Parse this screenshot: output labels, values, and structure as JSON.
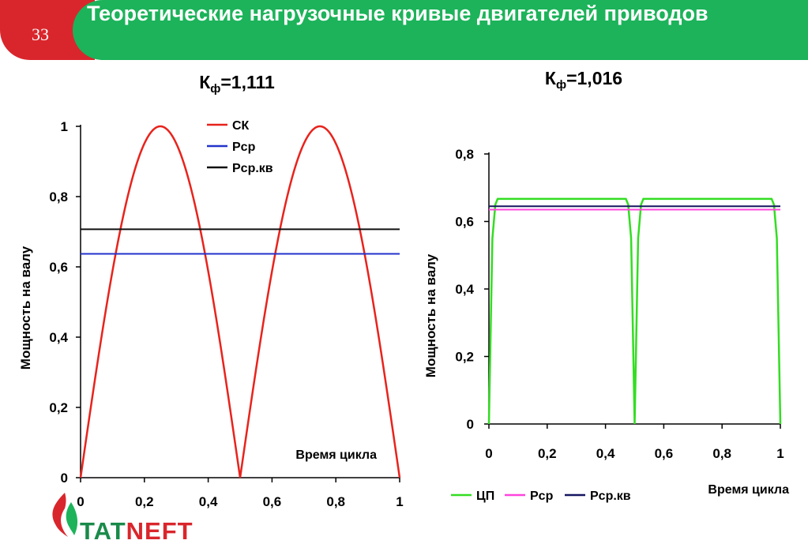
{
  "slide": {
    "number": "33",
    "title": "Теоретические нагрузочные кривые двигателей приводов"
  },
  "logo": {
    "part1": "TAT",
    "part2": "NEFT"
  },
  "colors": {
    "red": "#d9262c",
    "green": "#1cb35a",
    "logo_green": "#1a8a4a"
  },
  "chart_data": [
    {
      "type": "line",
      "title_main": "К",
      "title_sub": "ф",
      "title_value": "=1,111",
      "xlabel": "Время цикла",
      "ylabel": "Мощность на валу",
      "xlim": [
        0,
        1
      ],
      "ylim": [
        0,
        1
      ],
      "x_ticks": [
        "0",
        "0,2",
        "0,4",
        "0,6",
        "0,8",
        "1"
      ],
      "x_tick_values": [
        0,
        0.2,
        0.4,
        0.6,
        0.8,
        1
      ],
      "y_ticks": [
        "0",
        "0,2",
        "0,4",
        "0,6",
        "0,8",
        "1"
      ],
      "y_tick_values": [
        0,
        0.2,
        0.4,
        0.6,
        0.8,
        1
      ],
      "legend_position": "top-center",
      "series": [
        {
          "name": "СК",
          "color": "#e8231c",
          "function": "abs_sin_2pi_x"
        },
        {
          "name": "Рср",
          "color": "#2233cc",
          "constant": 0.637
        },
        {
          "name": "Рср.кв",
          "color": "#111111",
          "constant": 0.707
        }
      ]
    },
    {
      "type": "line",
      "title_main": "К",
      "title_sub": "ф",
      "title_value": "=1,016",
      "xlabel": "Время цикла",
      "ylabel": "Мощность на валу",
      "xlim": [
        0,
        1
      ],
      "ylim": [
        0,
        0.8
      ],
      "x_ticks": [
        "0",
        "0,2",
        "0,4",
        "0,6",
        "0,8",
        "1"
      ],
      "x_tick_values": [
        0,
        0.2,
        0.4,
        0.6,
        0.8,
        1
      ],
      "y_ticks": [
        "0",
        "0,2",
        "0,4",
        "0,6",
        "0,8"
      ],
      "y_tick_values": [
        0,
        0.2,
        0.4,
        0.6,
        0.8
      ],
      "legend_position": "bottom-left",
      "series": [
        {
          "name": "ЦП",
          "color": "#33dd22",
          "points": [
            [
              0,
              0
            ],
            [
              0.012,
              0.55
            ],
            [
              0.022,
              0.65
            ],
            [
              0.03,
              0.667
            ],
            [
              0.47,
              0.667
            ],
            [
              0.478,
              0.65
            ],
            [
              0.488,
              0.55
            ],
            [
              0.5,
              0
            ],
            [
              0.512,
              0.55
            ],
            [
              0.522,
              0.65
            ],
            [
              0.53,
              0.667
            ],
            [
              0.97,
              0.667
            ],
            [
              0.978,
              0.65
            ],
            [
              0.988,
              0.55
            ],
            [
              1,
              0
            ]
          ]
        },
        {
          "name": "Рср",
          "color": "#ff44dd",
          "constant": 0.635
        },
        {
          "name": "Рср.кв",
          "color": "#151560",
          "constant": 0.645
        }
      ]
    }
  ]
}
